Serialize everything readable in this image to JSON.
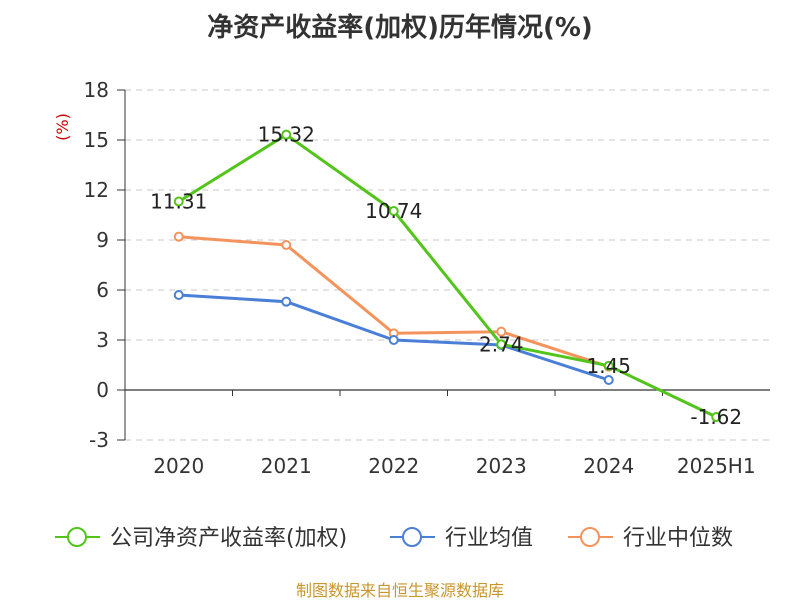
{
  "chart_data": {
    "type": "line",
    "title": "净资产收益率(加权)历年情况(%)",
    "ylabel": "(%)",
    "categories": [
      "2020",
      "2021",
      "2022",
      "2023",
      "2024",
      "2025H1"
    ],
    "ylim": [
      -3,
      18
    ],
    "yticks": [
      "18",
      "15",
      "12",
      "9",
      "6",
      "3",
      "0",
      "-3"
    ],
    "grid": true,
    "legend_position": "bottom",
    "series": [
      {
        "name": "公司净资产收益率(加权)",
        "color": "#52c41a",
        "values": [
          11.31,
          15.32,
          10.74,
          2.74,
          1.45,
          -1.62
        ],
        "labels": [
          "11.31",
          "15.32",
          "10.74",
          "2.74",
          "1.45",
          "-1.62"
        ]
      },
      {
        "name": "行业均值",
        "color": "#4a7fd8",
        "values": [
          5.7,
          5.3,
          3.0,
          2.7,
          0.6,
          null
        ]
      },
      {
        "name": "行业中位数",
        "color": "#f4945c",
        "values": [
          9.2,
          8.7,
          3.4,
          3.5,
          1.4,
          null
        ]
      }
    ],
    "source": "制图数据来自恒生聚源数据库"
  }
}
